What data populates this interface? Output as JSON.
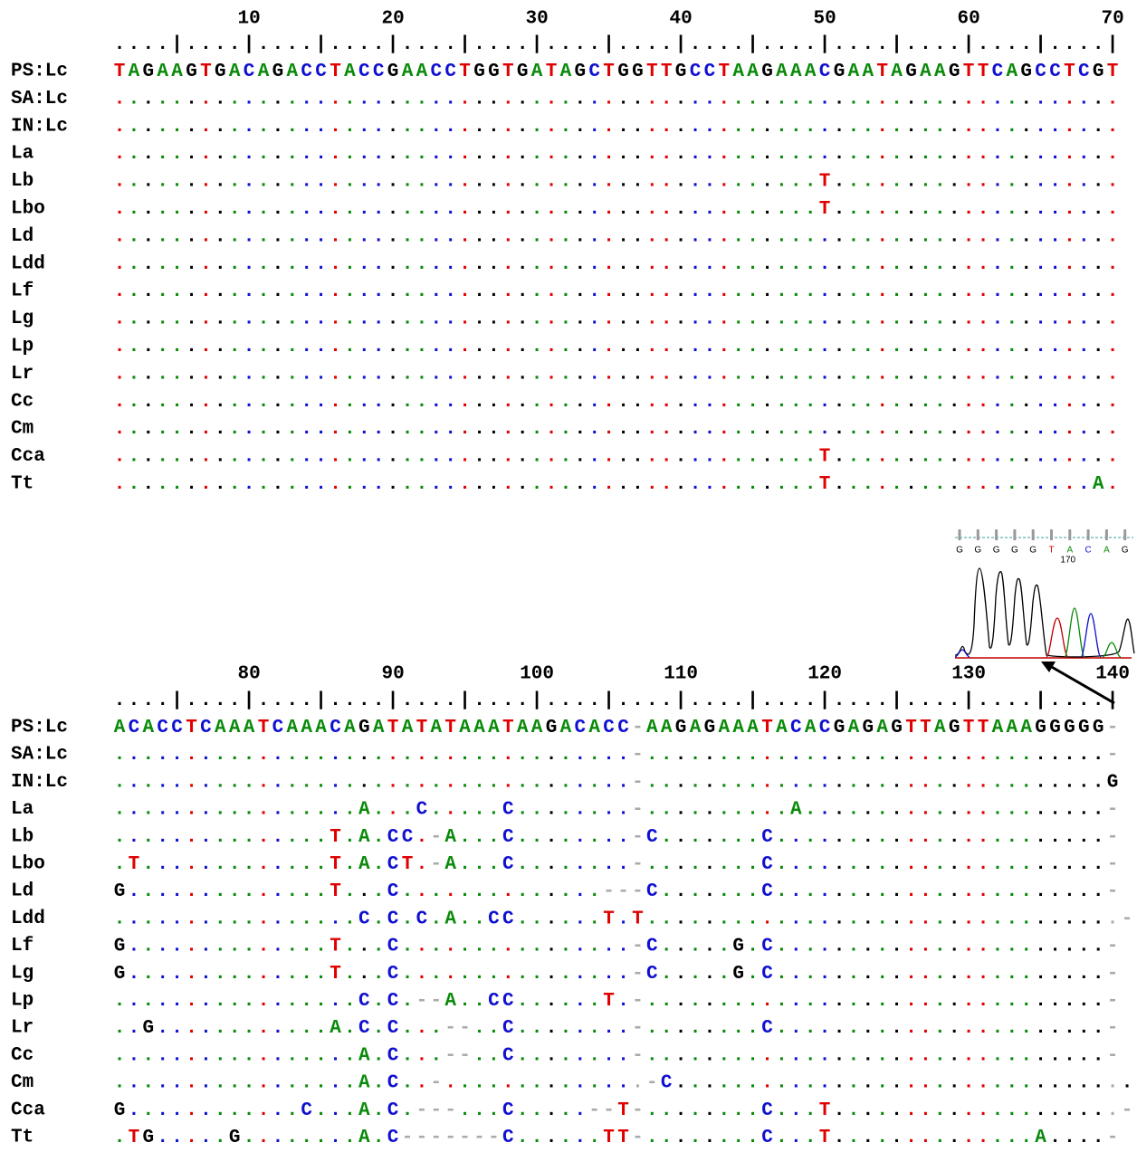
{
  "blocks": [
    {
      "ruler_numbers": [
        10,
        20,
        30,
        40,
        50,
        60,
        70
      ],
      "ruler": "....|....|....|....|....|....|....|....|....|....|....|....|....|....|",
      "rows": [
        {
          "label": "PS:Lc",
          "seq": "TAGAAGTGACAGACCTACCGAACCTGGTGATAGCTGGTTGCCTAAGAAACGAATAGAAGTTCAGCCTCGT"
        },
        {
          "label": "SA:Lc",
          "seq": "......................................................................"
        },
        {
          "label": "IN:Lc",
          "seq": "......................................................................"
        },
        {
          "label": "La",
          "seq": "......................................................................"
        },
        {
          "label": "Lb",
          "seq": ".................................................T...................."
        },
        {
          "label": "Lbo",
          "seq": ".................................................T...................."
        },
        {
          "label": "Ld",
          "seq": "......................................................................"
        },
        {
          "label": "Ldd",
          "seq": "......................................................................"
        },
        {
          "label": "Lf",
          "seq": "......................................................................"
        },
        {
          "label": "Lg",
          "seq": "......................................................................"
        },
        {
          "label": "Lp",
          "seq": "......................................................................"
        },
        {
          "label": "Lr",
          "seq": "......................................................................"
        },
        {
          "label": "Cc",
          "seq": "......................................................................"
        },
        {
          "label": "Cm",
          "seq": "......................................................................"
        },
        {
          "label": "Cca",
          "seq": ".................................................T...................."
        },
        {
          "label": "Tt",
          "seq": ".................................................T..................A."
        }
      ]
    },
    {
      "ruler_numbers": [
        80,
        90,
        100,
        110,
        120,
        130,
        140
      ],
      "ruler": "....|....|....|....|....|....|....|....|....|....|....|....|....|....|",
      "rows": [
        {
          "label": "PS:Lc",
          "seq": "ACACCTCAAATCAAACAGATATATAAATAAGACACC-AAGAGAAATACACGAGAGTTAGTTAAAGGGGG-"
        },
        {
          "label": "SA:Lc",
          "seq": "....................................-................................-"
        },
        {
          "label": "IN:Lc",
          "seq": "....................................-................................G"
        },
        {
          "label": "La",
          "seq": ".................A...C.....C........-..........A.....................-"
        },
        {
          "label": "Lb",
          "seq": "...............T.A.CC.-A...C........-C.......C.......................-"
        },
        {
          "label": "Lbo",
          "seq": ".T.............T.A.CT.-A...C........-........C.......................-"
        },
        {
          "label": "Ld",
          "seq": "G..............T...C..............---C.......C.......................-"
        },
        {
          "label": "Ldd",
          "seq": ".................C.C.C.A..CC......T.T.................................-"
        },
        {
          "label": "Lf",
          "seq": "G..............T...C................-C.....G.C.......................-"
        },
        {
          "label": "Lg",
          "seq": "G..............T...C................-C.....G.C.......................-"
        },
        {
          "label": "Lp",
          "seq": ".................C.C.--A..CC......T.-................................-"
        },
        {
          "label": "Lr",
          "seq": "..G............A.C.C...--..C........-........C.......................-"
        },
        {
          "label": "Cc",
          "seq": ".................A.C...--..C........-................................-"
        },
        {
          "label": "Cm",
          "seq": ".................A.C..-..............-C................................-"
        },
        {
          "label": "Cca",
          "seq": "G............C...A.C.---...C.....--T-........C...T....................-"
        },
        {
          "label": "Tt",
          "seq": ".TG.....G........A.C-------C......TT-........C...T..............A....-"
        }
      ]
    }
  ],
  "chromatogram": {
    "bases": [
      "G",
      "G",
      "G",
      "G",
      "G",
      "T",
      "A",
      "C",
      "A",
      "G"
    ],
    "position": "170"
  }
}
